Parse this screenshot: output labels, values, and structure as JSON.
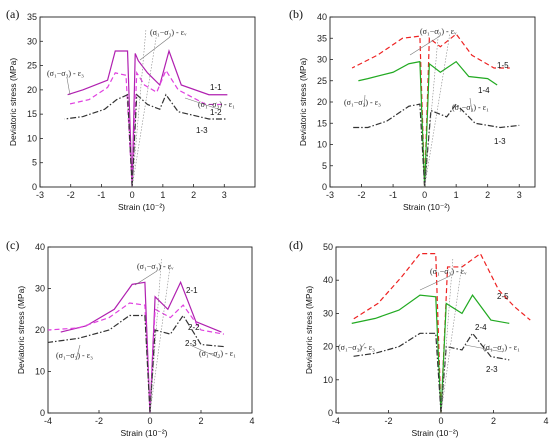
{
  "chart_data": [
    {
      "type": "line",
      "panel_label": "(a)",
      "xlabel": "Strain",
      "xlabel_unit": "(10⁻²)",
      "ylabel": "Deviatoric stress  (MPa)",
      "xlim": [
        -3,
        4
      ],
      "ylim": [
        0,
        35
      ],
      "xticks": [
        -3,
        -2,
        -1,
        0,
        1,
        2,
        3
      ],
      "yticks": [
        0,
        5,
        10,
        15,
        20,
        25,
        30,
        35
      ],
      "annotations": [
        "(σ₁−σ₃) - εᵥ",
        "(σ₁−σ₃) - ε₃",
        "(σ₁−σ₃) - ε₁"
      ],
      "series": [
        {
          "name": "1-1",
          "color": "#b020b0",
          "dash": "solid",
          "radial": [
            [
              0,
              0
            ],
            [
              0.1,
              27.5
            ],
            [
              0.2,
              26
            ],
            [
              0.5,
              23.5
            ],
            [
              0.9,
              21
            ],
            [
              1.2,
              28
            ],
            [
              1.6,
              21
            ],
            [
              2.5,
              19
            ],
            [
              3.1,
              19
            ]
          ],
          "lateral": [
            [
              -0.15,
              28
            ],
            [
              -0.55,
              28
            ],
            [
              -0.8,
              22
            ],
            [
              -1.6,
              20
            ],
            [
              -2.1,
              19
            ]
          ]
        },
        {
          "name": "1-2",
          "color": "#e040e0",
          "dash": "dash",
          "radial": [
            [
              0,
              0
            ],
            [
              0.15,
              23.5
            ],
            [
              0.4,
              21
            ],
            [
              0.8,
              19.5
            ],
            [
              1.1,
              24
            ],
            [
              1.5,
              20
            ],
            [
              2.4,
              17
            ],
            [
              3.0,
              17
            ]
          ],
          "lateral": [
            [
              -0.2,
              23
            ],
            [
              -0.55,
              23.5
            ],
            [
              -0.8,
              20.5
            ],
            [
              -1.4,
              18
            ],
            [
              -2.1,
              17
            ]
          ]
        },
        {
          "name": "1-3",
          "color": "#333333",
          "dash": "dashdot",
          "radial": [
            [
              0,
              0
            ],
            [
              0.15,
              19
            ],
            [
              0.5,
              17
            ],
            [
              0.9,
              16
            ],
            [
              1.1,
              19
            ],
            [
              1.5,
              15.5
            ],
            [
              2.5,
              14
            ],
            [
              3.1,
              14
            ]
          ],
          "lateral": [
            [
              -0.15,
              19
            ],
            [
              -0.5,
              18
            ],
            [
              -0.9,
              16
            ],
            [
              -1.6,
              14.5
            ],
            [
              -2.2,
              14
            ]
          ]
        }
      ]
    },
    {
      "type": "line",
      "panel_label": "(b)",
      "xlabel": "Strain",
      "xlabel_unit": "(10⁻²)",
      "ylabel": "Deviatoric stress  (MPa)",
      "xlim": [
        -3,
        3.5
      ],
      "ylim": [
        0,
        40
      ],
      "xticks": [
        -3,
        -2,
        -1,
        0,
        1,
        2,
        3
      ],
      "yticks": [
        0,
        5,
        10,
        15,
        20,
        25,
        30,
        35,
        40
      ],
      "annotations": [
        "(σ₁−σ₃) - εᵥ",
        "(σ₁−σ₃) - ε₃",
        "(σ₁−σ₃) - ε₁"
      ],
      "series": [
        {
          "name": "1-5",
          "color": "#ee2222",
          "dash": "dash",
          "radial": [
            [
              0,
              0
            ],
            [
              0.15,
              35
            ],
            [
              0.5,
              33
            ],
            [
              1.0,
              36
            ],
            [
              1.5,
              31
            ],
            [
              2.2,
              28
            ],
            [
              2.7,
              28
            ]
          ],
          "lateral": [
            [
              -0.15,
              35.5
            ],
            [
              -0.7,
              35
            ],
            [
              -1.5,
              31
            ],
            [
              -2.3,
              28
            ]
          ]
        },
        {
          "name": "1-4",
          "color": "#22aa22",
          "dash": "solid",
          "radial": [
            [
              0,
              0
            ],
            [
              0.15,
              29
            ],
            [
              0.5,
              27
            ],
            [
              1.0,
              29.5
            ],
            [
              1.4,
              26
            ],
            [
              2.0,
              25.5
            ],
            [
              2.3,
              24
            ]
          ],
          "lateral": [
            [
              -0.15,
              29.5
            ],
            [
              -0.5,
              29
            ],
            [
              -1.0,
              27
            ],
            [
              -1.8,
              25.5
            ],
            [
              -2.1,
              25
            ]
          ]
        },
        {
          "name": "1-3",
          "color": "#333333",
          "dash": "dashdot",
          "radial": [
            [
              0,
              0
            ],
            [
              0.2,
              18
            ],
            [
              0.7,
              16.5
            ],
            [
              1.0,
              19.5
            ],
            [
              1.6,
              15
            ],
            [
              2.4,
              14
            ],
            [
              3.0,
              14.5
            ]
          ],
          "lateral": [
            [
              -0.15,
              19.5
            ],
            [
              -0.5,
              19
            ],
            [
              -1.2,
              15.5
            ],
            [
              -1.8,
              14
            ],
            [
              -2.3,
              14
            ]
          ]
        }
      ]
    },
    {
      "type": "line",
      "panel_label": "(c)",
      "xlabel": "Strain",
      "xlabel_unit": "(10⁻²)",
      "ylabel": "Deviatoric stress  (MPa)",
      "xlim": [
        -4,
        4
      ],
      "ylim": [
        0,
        40
      ],
      "xticks": [
        -4,
        -2,
        0,
        2,
        4
      ],
      "yticks": [
        0,
        10,
        20,
        30,
        40
      ],
      "annotations": [
        "(σ₁−σ₃) - εᵥ",
        "(σ₁−σ₃) - ε₃",
        "(σ₁−σ₃) - ε₁"
      ],
      "series": [
        {
          "name": "2-1",
          "color": "#b020b0",
          "dash": "solid",
          "radial": [
            [
              0,
              0
            ],
            [
              0.2,
              28
            ],
            [
              0.7,
              25
            ],
            [
              1.2,
              31.5
            ],
            [
              1.8,
              22
            ],
            [
              2.8,
              19.5
            ]
          ],
          "lateral": [
            [
              -0.2,
              31.5
            ],
            [
              -0.7,
              31
            ],
            [
              -1.4,
              25
            ],
            [
              -2.5,
              21
            ],
            [
              -3.5,
              19.5
            ]
          ]
        },
        {
          "name": "2-2",
          "color": "#e040e0",
          "dash": "dash",
          "radial": [
            [
              0,
              0
            ],
            [
              0.2,
              25
            ],
            [
              0.8,
              23
            ],
            [
              1.3,
              26
            ],
            [
              2.0,
              20
            ],
            [
              2.9,
              19
            ]
          ],
          "lateral": [
            [
              -0.2,
              26
            ],
            [
              -0.8,
              26.5
            ],
            [
              -1.6,
              23
            ],
            [
              -2.8,
              20.5
            ],
            [
              -4.0,
              20
            ]
          ]
        },
        {
          "name": "2-3",
          "color": "#333333",
          "dash": "dashdot",
          "radial": [
            [
              0,
              0
            ],
            [
              0.2,
              20
            ],
            [
              0.8,
              19
            ],
            [
              1.3,
              23.5
            ],
            [
              2.0,
              16.5
            ],
            [
              2.9,
              16
            ]
          ],
          "lateral": [
            [
              -0.2,
              23.5
            ],
            [
              -0.8,
              23.5
            ],
            [
              -1.6,
              20
            ],
            [
              -2.8,
              18
            ],
            [
              -4.0,
              17
            ]
          ]
        }
      ]
    },
    {
      "type": "line",
      "panel_label": "(d)",
      "xlabel": "Strain",
      "xlabel_unit": "(10⁻²)",
      "ylabel": "Deviatoric stress  (MPa)",
      "xlim": [
        -4,
        4
      ],
      "ylim": [
        0,
        50
      ],
      "xticks": [
        -4,
        -2,
        0,
        2,
        4
      ],
      "yticks": [
        0,
        10,
        20,
        30,
        40,
        50
      ],
      "annotations": [
        "(σ₁−σ₃) - εᵥ",
        "(σ₁−σ₃) - ε₃",
        "(σ₁−σ₃) - ε₁"
      ],
      "series": [
        {
          "name": "2-5",
          "color": "#ee2222",
          "dash": "dash",
          "radial": [
            [
              0,
              0
            ],
            [
              0.25,
              44
            ],
            [
              0.8,
              44
            ],
            [
              1.5,
              48
            ],
            [
              2.2,
              37
            ],
            [
              2.8,
              32
            ],
            [
              3.4,
              28
            ]
          ],
          "lateral": [
            [
              -0.2,
              48
            ],
            [
              -0.8,
              48
            ],
            [
              -1.5,
              41
            ],
            [
              -2.4,
              33
            ],
            [
              -3.4,
              28
            ]
          ]
        },
        {
          "name": "2-4",
          "color": "#22aa22",
          "dash": "solid",
          "radial": [
            [
              0,
              0
            ],
            [
              0.2,
              33
            ],
            [
              0.8,
              30
            ],
            [
              1.2,
              35.5
            ],
            [
              1.9,
              28
            ],
            [
              2.6,
              27
            ]
          ],
          "lateral": [
            [
              -0.2,
              35
            ],
            [
              -0.8,
              35.5
            ],
            [
              -1.6,
              31
            ],
            [
              -2.5,
              28.5
            ],
            [
              -3.4,
              27
            ]
          ]
        },
        {
          "name": "2-3",
          "color": "#333333",
          "dash": "dashdot",
          "radial": [
            [
              0,
              0
            ],
            [
              0.2,
              20
            ],
            [
              0.8,
              19
            ],
            [
              1.2,
              24
            ],
            [
              1.9,
              17
            ],
            [
              2.6,
              16
            ]
          ],
          "lateral": [
            [
              -0.2,
              24
            ],
            [
              -0.8,
              24
            ],
            [
              -1.6,
              20
            ],
            [
              -2.5,
              18
            ],
            [
              -3.4,
              17
            ]
          ]
        }
      ]
    }
  ]
}
